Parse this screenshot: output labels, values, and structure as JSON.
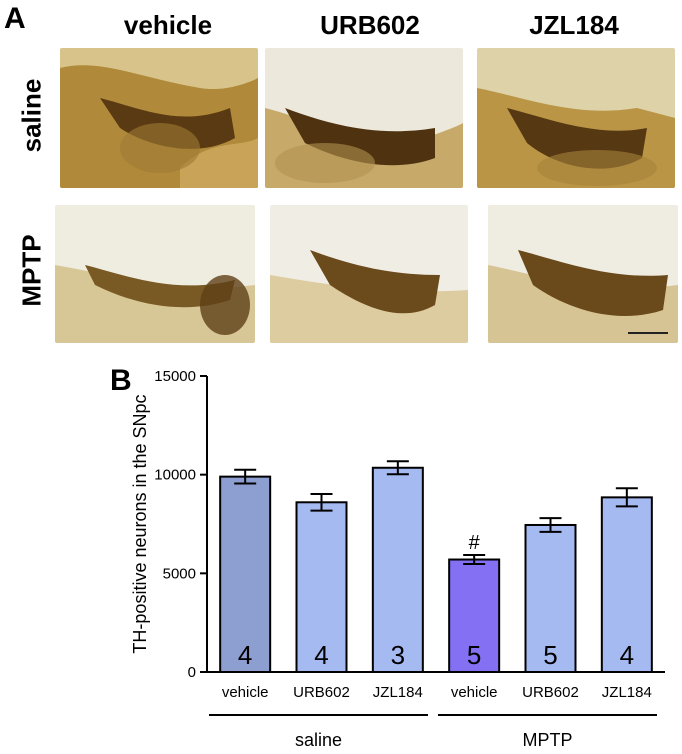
{
  "figure": {
    "panel_a_label": "A",
    "panel_b_label": "B",
    "columns": [
      "vehicle",
      "URB602",
      "JZL184"
    ],
    "rows": [
      "saline",
      "MPTP"
    ]
  },
  "chart_data": {
    "type": "bar",
    "categories": [
      "vehicle",
      "URB602",
      "JZL184",
      "vehicle",
      "URB602",
      "JZL184"
    ],
    "groups": [
      {
        "label": "saline",
        "categories": [
          0,
          1,
          2
        ]
      },
      {
        "label": "MPTP",
        "categories": [
          3,
          4,
          5
        ]
      }
    ],
    "values": [
      9900,
      8600,
      10350,
      5700,
      7450,
      8850
    ],
    "errors": [
      350,
      420,
      330,
      230,
      350,
      460
    ],
    "n_labels": [
      "4",
      "4",
      "3",
      "5",
      "5",
      "4"
    ],
    "annotations": [
      "",
      "",
      "",
      "#",
      "",
      ""
    ],
    "bar_colors": [
      "#8d9fd0",
      "#a6baf2",
      "#a6baf2",
      "#8370f3",
      "#a6baf2",
      "#a6baf2"
    ],
    "ylabel": "TH-positive neurons in the SNpc",
    "ylim": [
      0,
      15000
    ],
    "yticks": [
      0,
      5000,
      10000,
      15000
    ],
    "grid": false,
    "legend": "none"
  }
}
